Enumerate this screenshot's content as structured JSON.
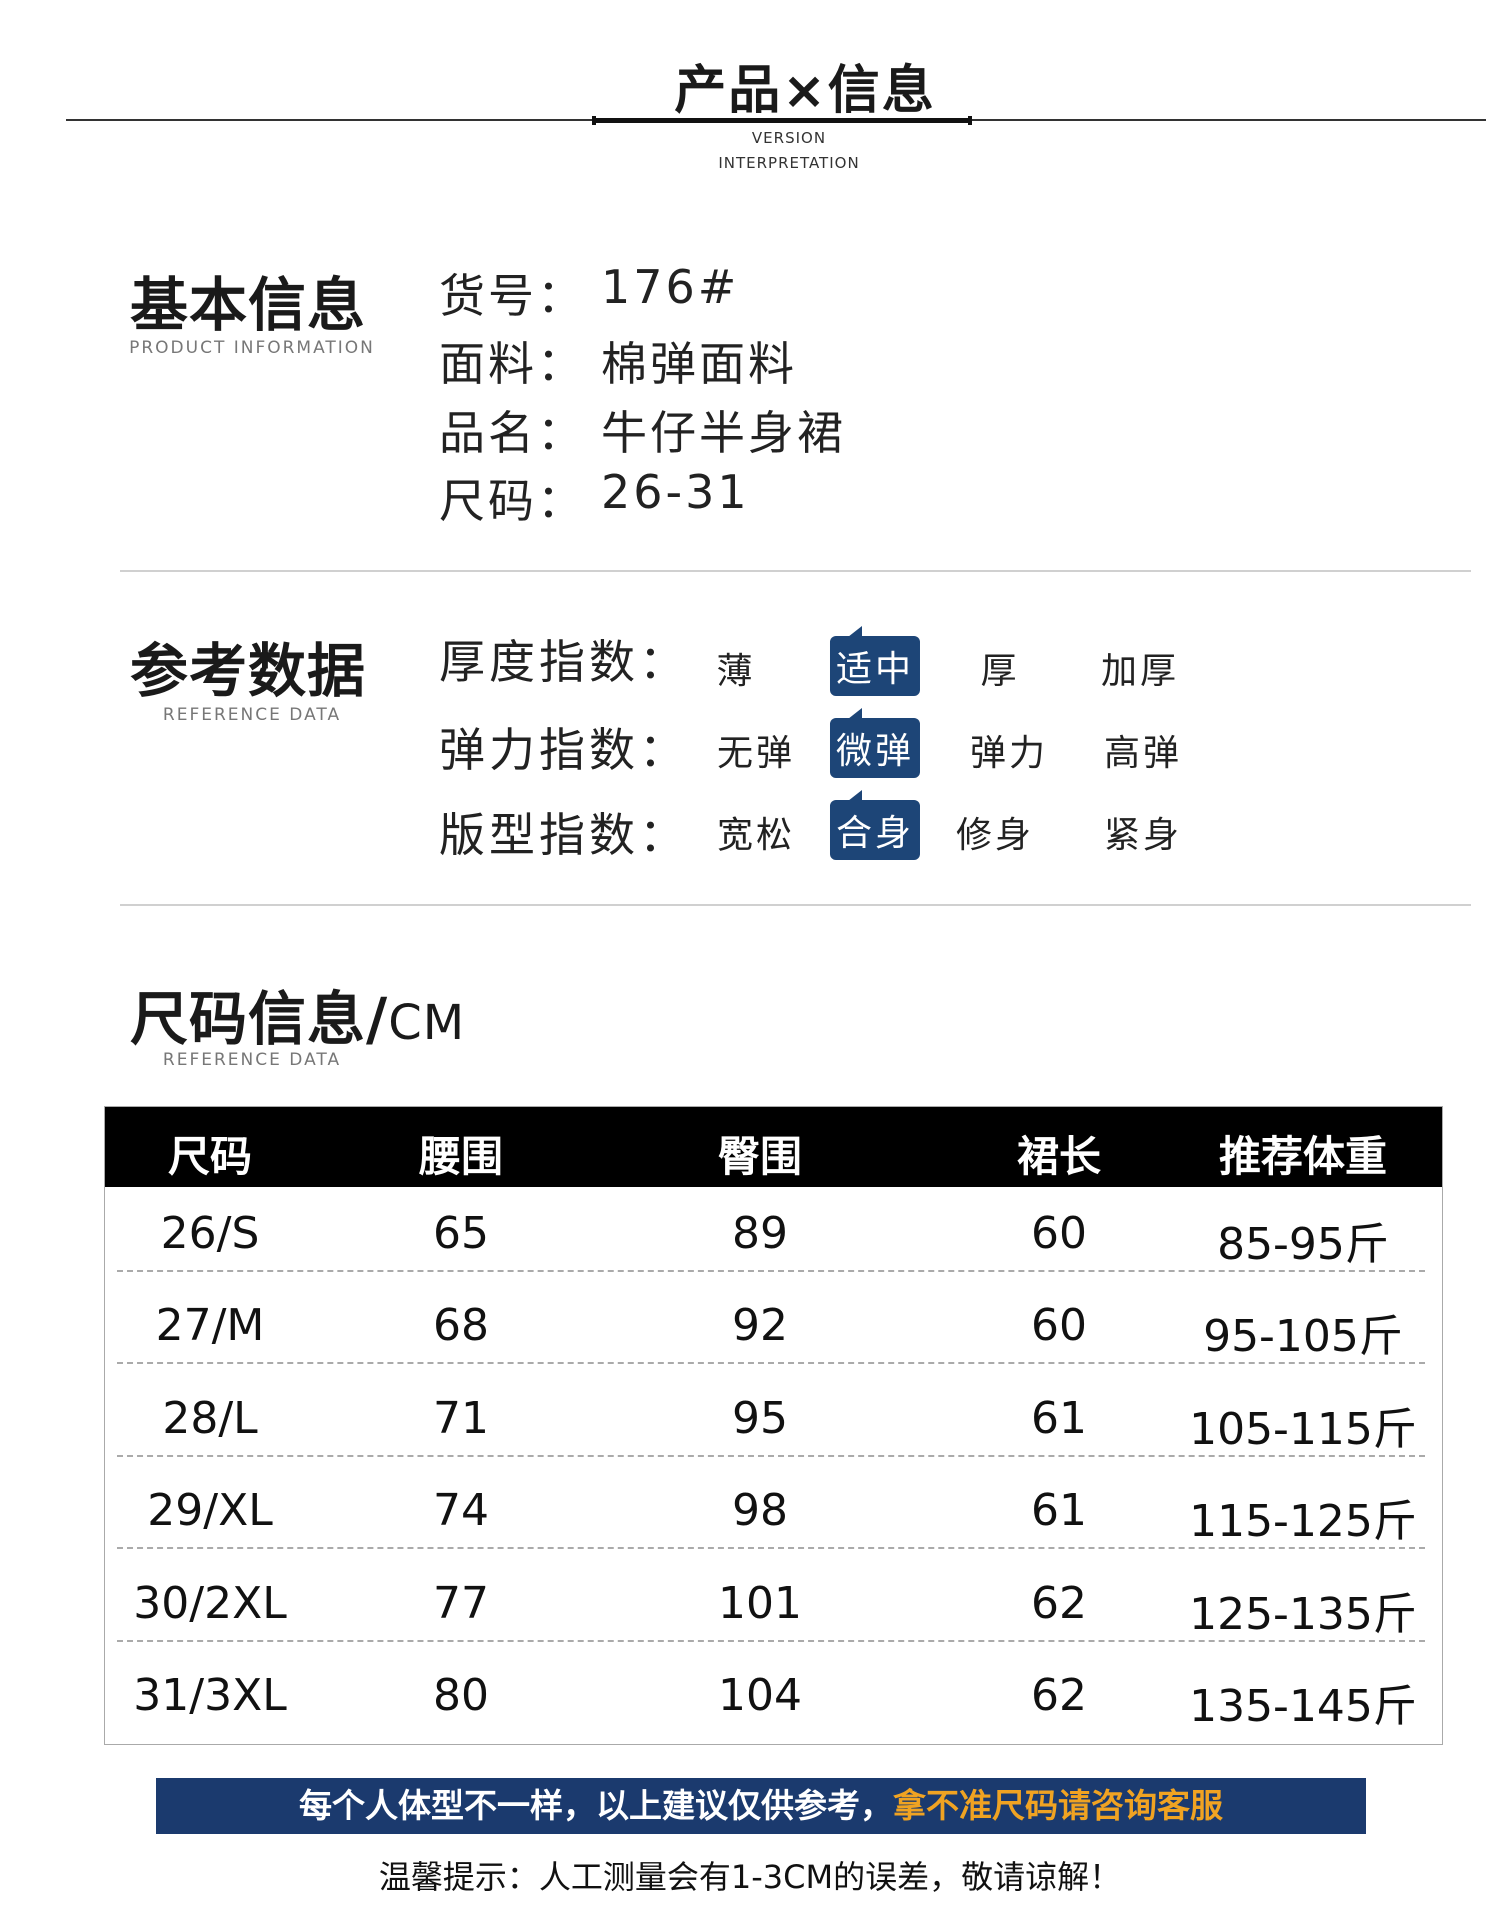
{
  "header": {
    "title": "产品×信息",
    "sub1": "VERSION",
    "sub2": "INTERPRETATION"
  },
  "basic": {
    "title": "基本信息",
    "subtitle": "PRODUCT INFORMATION",
    "fields": [
      {
        "label": "货号：",
        "value": "176#"
      },
      {
        "label": "面料：",
        "value": "棉弹面料"
      },
      {
        "label": "品名：",
        "value": "牛仔半身裙"
      },
      {
        "label": "尺码：",
        "value": "26-31"
      }
    ]
  },
  "reference": {
    "title": "参考数据",
    "subtitle": "REFERENCE DATA",
    "accent": "#1d4577",
    "indices": [
      {
        "label": "厚度指数：",
        "options": [
          "薄",
          "适中",
          "厚",
          "加厚"
        ],
        "selected": "适中"
      },
      {
        "label": "弹力指数：",
        "options": [
          "无弹",
          "微弹",
          "弹力",
          "高弹"
        ],
        "selected": "微弹"
      },
      {
        "label": "版型指数：",
        "options": [
          "宽松",
          "合身",
          "修身",
          "紧身"
        ],
        "selected": "合身"
      }
    ]
  },
  "size": {
    "title": "尺码信息/",
    "unit": "CM",
    "subtitle": "REFERENCE DATA",
    "columns": [
      "尺码",
      "腰围",
      "臀围",
      "裙长",
      "推荐体重"
    ],
    "rows": [
      [
        "26/S",
        "65",
        "89",
        "60",
        "85-95斤"
      ],
      [
        "27/M",
        "68",
        "92",
        "60",
        "95-105斤"
      ],
      [
        "28/L",
        "71",
        "95",
        "61",
        "105-115斤"
      ],
      [
        "29/XL",
        "74",
        "98",
        "61",
        "115-125斤"
      ],
      [
        "30/2XL",
        "77",
        "101",
        "62",
        "125-135斤"
      ],
      [
        "31/3XL",
        "80",
        "104",
        "62",
        "135-145斤"
      ]
    ]
  },
  "banner": {
    "text": "每个人体型不一样，以上建议仅供参考，",
    "highlight": "拿不准尺码请咨询客服",
    "bg": "#1b3a6e",
    "highlight_color": "#f0a322"
  },
  "footer": {
    "note": "温馨提示：人工测量会有1-3CM的误差，敬请谅解！"
  }
}
